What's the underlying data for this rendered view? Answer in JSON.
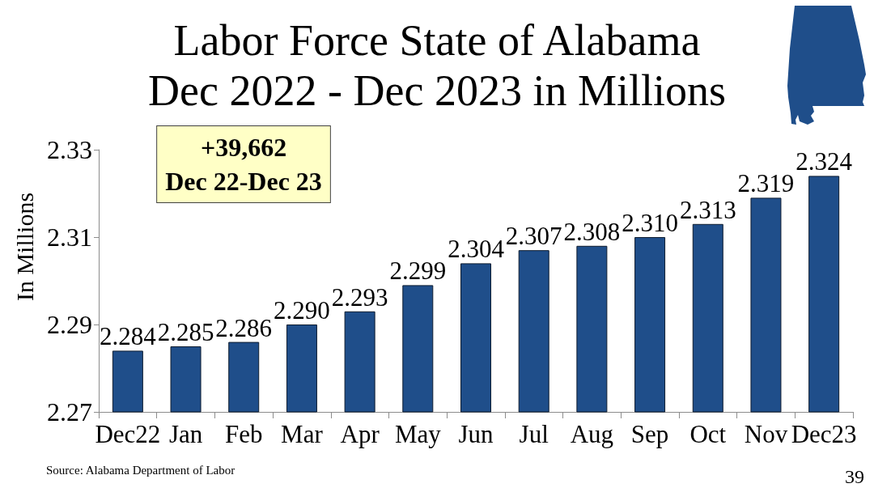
{
  "chart_data": {
    "type": "bar",
    "title": "Labor Force State of Alabama",
    "subtitle": "Dec 2022 - Dec 2023 in Millions",
    "ylabel": "In Millions",
    "categories": [
      "Dec22",
      "Jan",
      "Feb",
      "Mar",
      "Apr",
      "May",
      "Jun",
      "Jul",
      "Aug",
      "Sep",
      "Oct",
      "Nov",
      "Dec23"
    ],
    "values": [
      2.284,
      2.285,
      2.286,
      2.29,
      2.293,
      2.299,
      2.304,
      2.307,
      2.308,
      2.31,
      2.313,
      2.319,
      2.324
    ],
    "value_labels": [
      "2.284",
      "2.285",
      "2.286",
      "2.290",
      "2.293",
      "2.299",
      "2.304",
      "2.307",
      "2.308",
      "2.310",
      "2.313",
      "2.319",
      "2.324"
    ],
    "color": "#1f4e8a",
    "ylim": [
      2.27,
      2.33
    ],
    "yticks": [
      2.27,
      2.29,
      2.31,
      2.33
    ],
    "annotations": [
      "+39,662\nDec 22-Dec 23",
      "Source: Alabama Department of Labor",
      "39"
    ]
  }
}
